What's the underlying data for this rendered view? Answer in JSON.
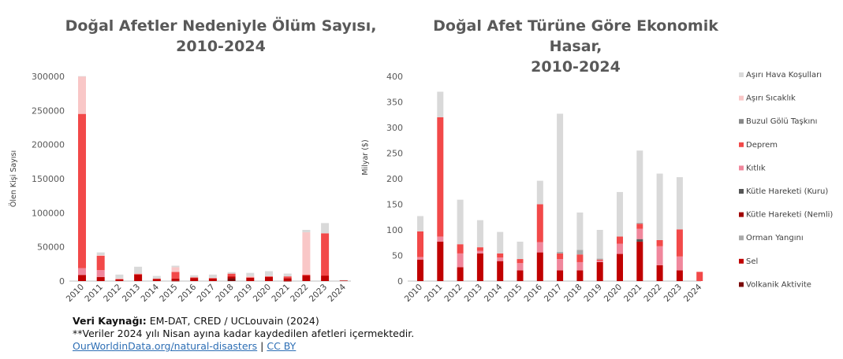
{
  "chart_data": [
    {
      "type": "bar",
      "stacked": true,
      "title_line1": "Doğal Afetler Nedeniyle Ölüm Sayısı,",
      "title_line2": "2010-2024",
      "xlabel": "",
      "ylabel": "Ölen Kişi Sayısı",
      "ylim": [
        0,
        300000
      ],
      "yticks": [
        "0",
        "50000",
        "100000",
        "150000",
        "200000",
        "250000",
        "300000"
      ],
      "ytick_values": [
        0,
        50000,
        100000,
        150000,
        200000,
        250000,
        300000
      ],
      "grid": false,
      "categories": [
        "2010",
        "2011",
        "2012",
        "2013",
        "2014",
        "2015",
        "2016",
        "2017",
        "2018",
        "2019",
        "2020",
        "2021",
        "2022",
        "2023",
        "2024"
      ],
      "series": [
        {
          "key": "volcano",
          "color": "#7a0a0a",
          "values": [
            0,
            0,
            0,
            0,
            0,
            300,
            0,
            0,
            4000,
            0,
            0,
            100,
            0,
            0,
            0
          ]
        },
        {
          "key": "flood",
          "color": "#c00000",
          "values": [
            9000,
            6000,
            2500,
            9500,
            3000,
            3500,
            4500,
            3500,
            2800,
            5000,
            6000,
            4200,
            8000,
            8000,
            1000
          ]
        },
        {
          "key": "wet",
          "color": "#a00000",
          "values": [
            0,
            0,
            0,
            0,
            0,
            0,
            0,
            0,
            0,
            0,
            0,
            0,
            0,
            0,
            0
          ]
        },
        {
          "key": "dry",
          "color": "#555555",
          "values": [
            0,
            0,
            0,
            0,
            0,
            0,
            0,
            0,
            0,
            0,
            0,
            0,
            0,
            0,
            0
          ]
        },
        {
          "key": "drought",
          "color": "#f0879c",
          "values": [
            10000,
            10000,
            0,
            0,
            0,
            0,
            0,
            0,
            0,
            0,
            0,
            0,
            0,
            0,
            0
          ]
        },
        {
          "key": "quake",
          "color": "#f24949",
          "values": [
            226000,
            21000,
            800,
            1200,
            700,
            9500,
            1000,
            1000,
            4000,
            500,
            1000,
            2500,
            1500,
            62000,
            0
          ]
        },
        {
          "key": "glacier",
          "color": "#888888",
          "values": [
            0,
            0,
            0,
            0,
            0,
            0,
            0,
            0,
            0,
            0,
            0,
            0,
            0,
            0,
            0
          ]
        },
        {
          "key": "wildfire",
          "color": "#aaaaaa",
          "values": [
            0,
            0,
            0,
            0,
            0,
            0,
            0,
            0,
            0,
            0,
            0,
            0,
            0,
            0,
            0
          ]
        },
        {
          "key": "heat",
          "color": "#f9c7c7",
          "values": [
            55000,
            1000,
            500,
            0,
            0,
            7000,
            0,
            0,
            0,
            1500,
            0,
            0,
            62000,
            0,
            0
          ]
        },
        {
          "key": "weather",
          "color": "#d9d9d9",
          "values": [
            300,
            4000,
            5700,
            10300,
            3800,
            2200,
            3000,
            5000,
            2200,
            5000,
            7500,
            4200,
            3500,
            15000,
            500
          ]
        }
      ]
    },
    {
      "type": "bar",
      "stacked": true,
      "title_line1": "Doğal Afet Türüne Göre Ekonomik Hasar,",
      "title_line2": "2010-2024",
      "xlabel": "",
      "ylabel": "Milyar ($)",
      "ylim": [
        0,
        400
      ],
      "yticks": [
        "0",
        "50",
        "100",
        "150",
        "200",
        "250",
        "300",
        "350",
        "400"
      ],
      "ytick_values": [
        0,
        50,
        100,
        150,
        200,
        250,
        300,
        350,
        400
      ],
      "grid": false,
      "legend_position": "right",
      "legend": [
        {
          "key": "weather",
          "label": "Aşırı Hava Koşulları",
          "color": "#d9d9d9"
        },
        {
          "key": "heat",
          "label": "Aşırı Sıcaklık",
          "color": "#f9c7c7"
        },
        {
          "key": "glacier",
          "label": "Buzul Gölü Taşkını",
          "color": "#888888"
        },
        {
          "key": "quake",
          "label": "Deprem",
          "color": "#f24949"
        },
        {
          "key": "drought",
          "label": "Kıtlık",
          "color": "#f0879c"
        },
        {
          "key": "dry",
          "label": "Kütle Hareketi (Kuru)",
          "color": "#555555"
        },
        {
          "key": "wet",
          "label": "Kütle Hareketi (Nemli)",
          "color": "#a00000"
        },
        {
          "key": "wildfire",
          "label": "Orman Yangını",
          "color": "#aaaaaa"
        },
        {
          "key": "flood",
          "label": "Sel",
          "color": "#c00000"
        },
        {
          "key": "volcano",
          "label": "Volkanik Aktivite",
          "color": "#7a0a0a"
        }
      ],
      "categories": [
        "2010",
        "2011",
        "2012",
        "2013",
        "2014",
        "2015",
        "2016",
        "2017",
        "2018",
        "2019",
        "2020",
        "2021",
        "2022",
        "2023",
        "2024"
      ],
      "series": [
        {
          "key": "volcano",
          "color": "#7a0a0a",
          "values": [
            0,
            0,
            0,
            0,
            0,
            0,
            0,
            0,
            0,
            0,
            0,
            0,
            0,
            0,
            0
          ]
        },
        {
          "key": "flood",
          "color": "#c00000",
          "values": [
            42,
            77,
            27,
            54,
            39,
            21,
            56,
            21,
            21,
            37,
            53,
            77,
            31,
            21,
            0
          ]
        },
        {
          "key": "wet",
          "color": "#a00000",
          "values": [
            0,
            0,
            0,
            0,
            0,
            0,
            0,
            0,
            0,
            0,
            0,
            0,
            0,
            0,
            0
          ]
        },
        {
          "key": "dry",
          "color": "#555555",
          "values": [
            0,
            0,
            0,
            0,
            0,
            0,
            0,
            0,
            0,
            0,
            0,
            5,
            0,
            0,
            0
          ]
        },
        {
          "key": "drought",
          "color": "#f0879c",
          "values": [
            5,
            10,
            27,
            5,
            7,
            14,
            20,
            22,
            16,
            3,
            20,
            20,
            37,
            27,
            0
          ]
        },
        {
          "key": "quake",
          "color": "#f24949",
          "values": [
            50,
            233,
            18,
            7,
            8,
            8,
            74,
            11,
            15,
            2,
            14,
            10,
            12,
            53,
            18
          ]
        },
        {
          "key": "glacier",
          "color": "#888888",
          "values": [
            0,
            0,
            0,
            0,
            0,
            0,
            0,
            0,
            0,
            0,
            0,
            0,
            0,
            0,
            0
          ]
        },
        {
          "key": "wildfire",
          "color": "#aaaaaa",
          "values": [
            0,
            0,
            0,
            0,
            0,
            0,
            0,
            3,
            9,
            2,
            0,
            2,
            0,
            0,
            0
          ]
        },
        {
          "key": "heat",
          "color": "#f9c7c7",
          "values": [
            0,
            0,
            0,
            0,
            0,
            0,
            0,
            0,
            0,
            0,
            0,
            0,
            0,
            0,
            0
          ]
        },
        {
          "key": "weather",
          "color": "#d9d9d9",
          "values": [
            30,
            50,
            87,
            53,
            42,
            34,
            46,
            270,
            73,
            56,
            87,
            141,
            130,
            102,
            0
          ]
        }
      ]
    }
  ],
  "footer": {
    "source_label": "Veri Kaynağı:",
    "source_text": " EM-DAT, CRED / UCLouvain (2024)",
    "note": "**Veriler 2024 yılı Nisan ayına kadar kaydedilen afetleri içermektedir.",
    "link1": "OurWorldinData.org/natural-disasters",
    "separator": " | ",
    "link2": "CC BY"
  }
}
